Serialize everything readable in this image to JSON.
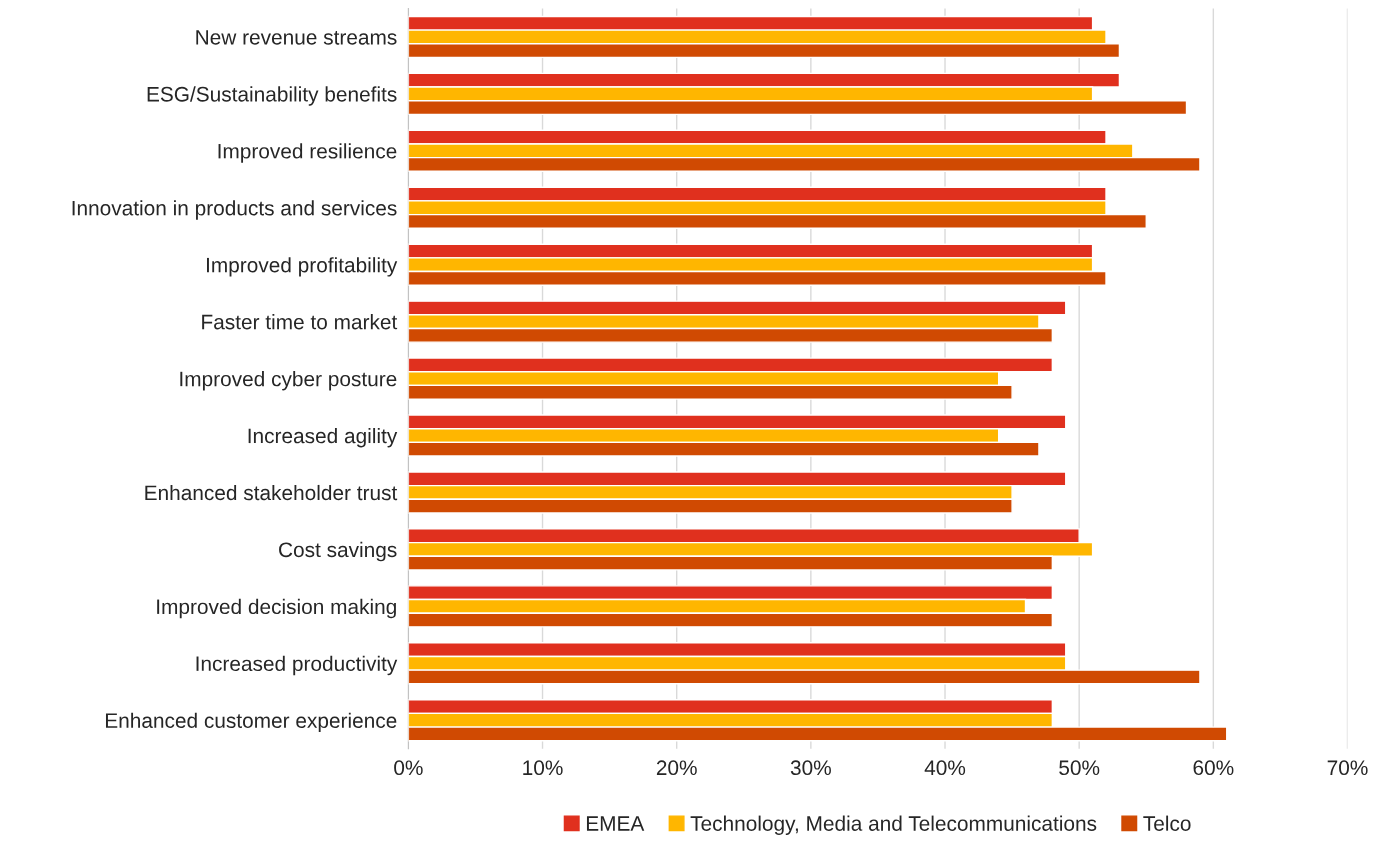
{
  "chart_data": {
    "type": "bar",
    "orientation": "horizontal",
    "categories": [
      "New revenue streams",
      "ESG/Sustainability benefits",
      "Improved resilience",
      "Innovation in products and services",
      "Improved profitability",
      "Faster time to market",
      "Improved cyber posture",
      "Increased agility",
      "Enhanced stakeholder trust",
      "Cost savings",
      "Improved decision making",
      "Increased productivity",
      "Enhanced customer experience"
    ],
    "series": [
      {
        "name": "EMEA",
        "color": "#e0301e",
        "values": [
          51,
          53,
          52,
          52,
          51,
          49,
          48,
          49,
          49,
          50,
          48,
          49,
          48
        ]
      },
      {
        "name": "Technology, Media and Telecommunications",
        "color": "#ffb600",
        "values": [
          52,
          51,
          54,
          52,
          51,
          47,
          44,
          44,
          45,
          51,
          46,
          49,
          48
        ]
      },
      {
        "name": "Telco",
        "color": "#d04a02",
        "values": [
          53,
          58,
          59,
          55,
          52,
          48,
          45,
          47,
          45,
          48,
          48,
          59,
          61
        ]
      }
    ],
    "xlim": [
      0,
      70
    ],
    "xticks": [
      {
        "value": 0,
        "label": "0%"
      },
      {
        "value": 10,
        "label": "10%"
      },
      {
        "value": 20,
        "label": "20%"
      },
      {
        "value": 30,
        "label": "30%"
      },
      {
        "value": 40,
        "label": "40%"
      },
      {
        "value": 50,
        "label": "50%"
      },
      {
        "value": 60,
        "label": "60%"
      },
      {
        "value": 70,
        "label": "70%"
      }
    ],
    "grid": "x",
    "legend": "bottom"
  }
}
